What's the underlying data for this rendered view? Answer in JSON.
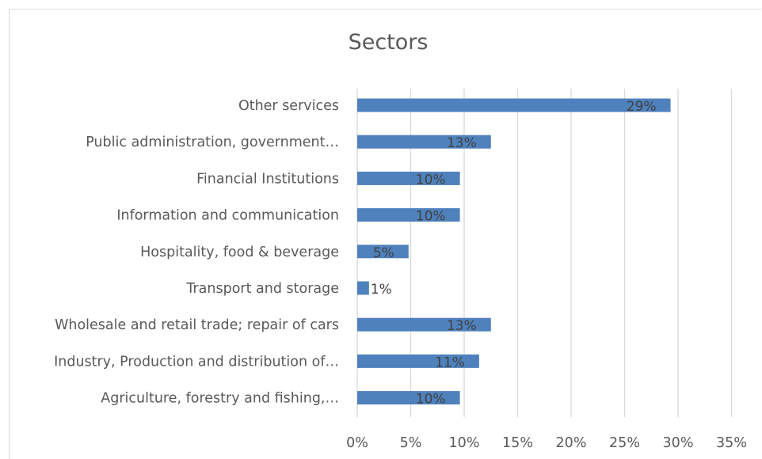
{
  "chart_data": {
    "type": "bar",
    "orientation": "horizontal",
    "title": "Sectors",
    "categories": [
      "Other services",
      "Public administration, government…",
      "Financial Institutions",
      "Information and communication",
      "Hospitality, food & beverage",
      "Transport and storage",
      "Wholesale and retail trade; repair of cars",
      "Industry, Production and distribution of…",
      "Agriculture, forestry and fishing,…"
    ],
    "values": [
      29.3,
      12.5,
      9.6,
      9.6,
      4.8,
      1.1,
      12.5,
      11.4,
      9.6
    ],
    "data_labels": [
      "29%",
      "13%",
      "10%",
      "10%",
      "5%",
      "1%",
      "13%",
      "11%",
      "10%"
    ],
    "xlim": [
      0,
      35
    ],
    "x_ticks": [
      "0%",
      "5%",
      "10%",
      "15%",
      "20%",
      "25%",
      "30%",
      "35%"
    ],
    "grid": "vertical",
    "bar_color": "#4f81bd",
    "legend": "none"
  }
}
